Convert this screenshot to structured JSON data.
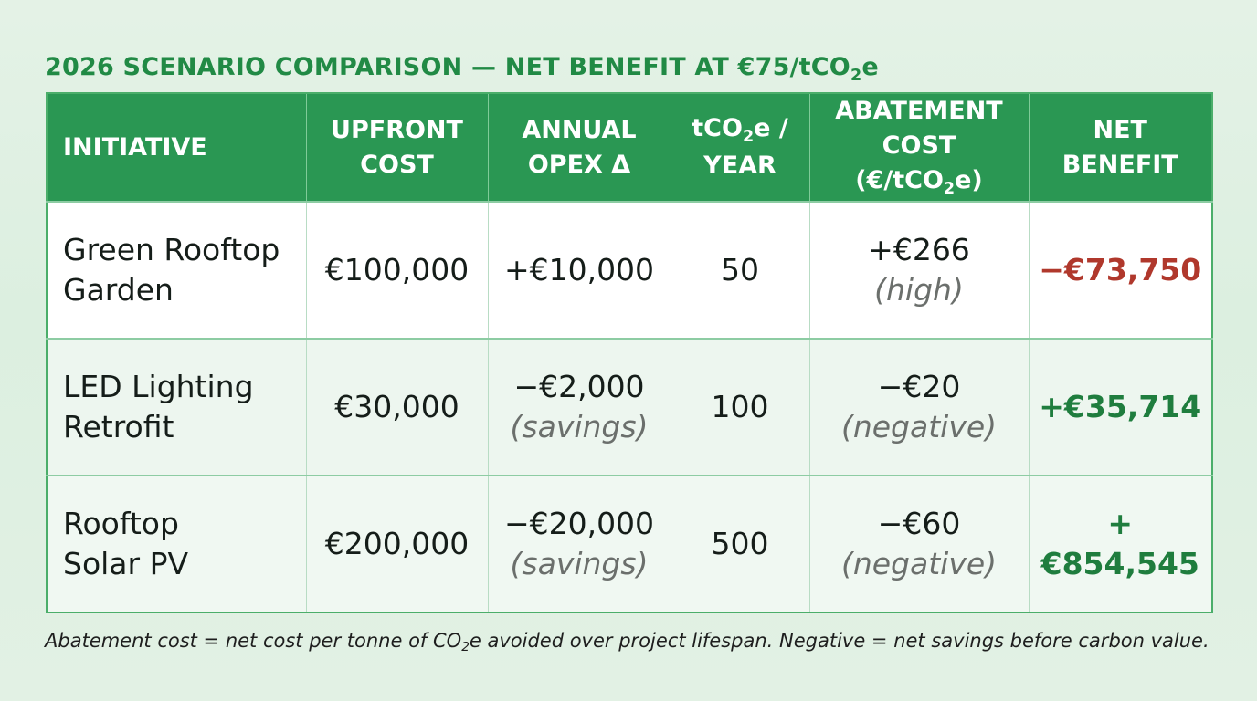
{
  "title": {
    "prefix": "2026 SCENARIO COMPARISON — NET BENEFIT AT €75/tCO",
    "sub": "2",
    "suffix": "e"
  },
  "table": {
    "headers": {
      "initiative": "INITIATIVE",
      "upfront_cost_l1": "UPFRONT",
      "upfront_cost_l2": "COST",
      "annual_opex_l1": "ANNUAL",
      "annual_opex_l2": "OPEX Δ",
      "tco2e_l1_prefix": "tCO",
      "tco2e_l1_sub": "2",
      "tco2e_l1_suffix": "e /",
      "tco2e_l2": "YEAR",
      "abatement_l1": "ABATEMENT",
      "abatement_l2_prefix": "COST (€/tCO",
      "abatement_l2_sub": "2",
      "abatement_l2_suffix": "e)",
      "net_benefit_l1": "NET",
      "net_benefit_l2": "BENEFIT"
    },
    "rows": [
      {
        "initiative_l1": "Green Rooftop",
        "initiative_l2": "Garden",
        "upfront_cost": "€100,000",
        "annual_opex": "+€10,000",
        "annual_opex_note": "",
        "tco2e_year": "50",
        "abatement_cost": "+€266",
        "abatement_note": "(high)",
        "net_benefit": "−€73,750",
        "net_benefit_sign": "negative"
      },
      {
        "initiative_l1": "LED Lighting",
        "initiative_l2": "Retrofit",
        "upfront_cost": "€30,000",
        "annual_opex": "−€2,000",
        "annual_opex_note": "(savings)",
        "tco2e_year": "100",
        "abatement_cost": "−€20",
        "abatement_note": "(negative)",
        "net_benefit": "+€35,714",
        "net_benefit_sign": "positive"
      },
      {
        "initiative_l1": "Rooftop",
        "initiative_l2": "Solar PV",
        "upfront_cost": "€200,000",
        "annual_opex": "−€20,000",
        "annual_opex_note": "(savings)",
        "tco2e_year": "500",
        "abatement_cost": "−€60",
        "abatement_note": "(negative)",
        "net_benefit": "+€854,545",
        "net_benefit_sign": "positive"
      }
    ]
  },
  "footnote": {
    "prefix": "Abatement cost = net cost per tonne of CO",
    "sub": "2",
    "suffix": "e avoided over project lifespan. Negative = net savings before carbon value."
  },
  "colors": {
    "title_green": "#218a45",
    "header_green": "#2a9753",
    "negative_red": "#b0382c",
    "positive_green": "#1f7d3e"
  }
}
